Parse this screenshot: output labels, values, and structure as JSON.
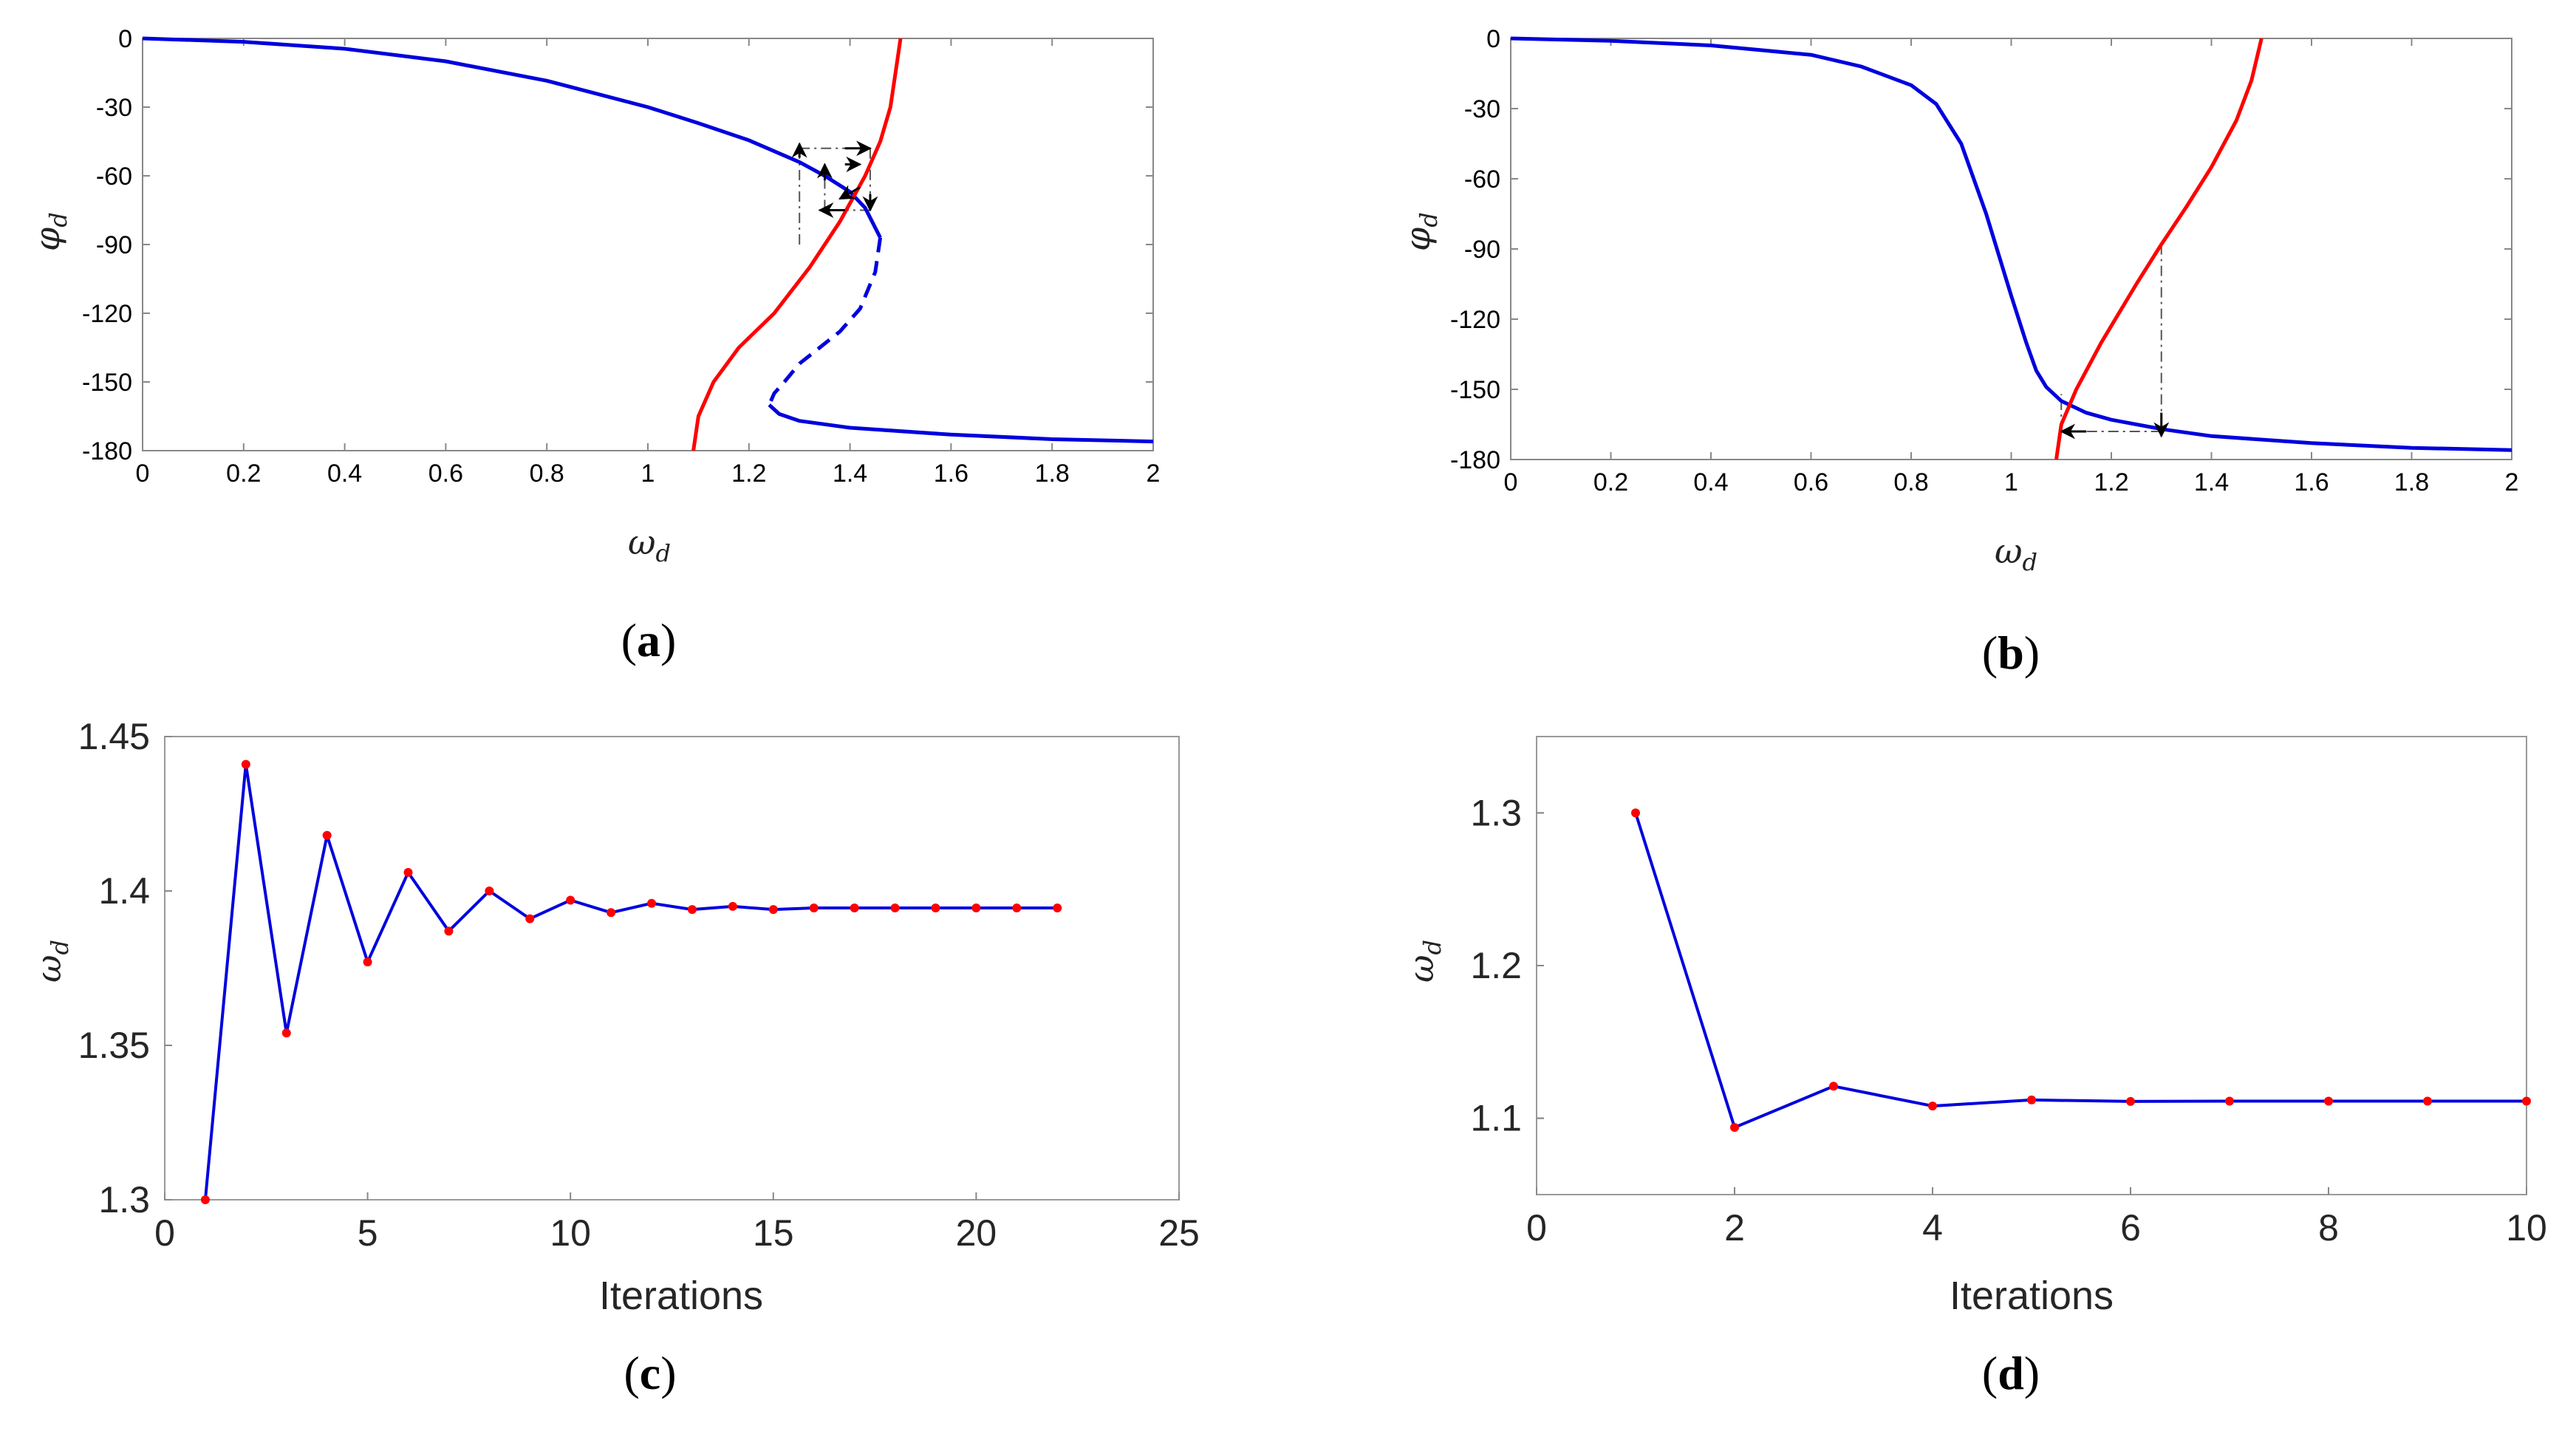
{
  "colors": {
    "red": "#ff0000",
    "blue": "#0000dd",
    "marker": "#ff0000",
    "axis": "#888888",
    "guide": "#555555"
  },
  "chart_data": [
    {
      "id": "a",
      "type": "line",
      "panel_label": "a",
      "xlabel_symbol": "ω",
      "xlabel_sub": "d",
      "ylabel_symbol": "φ",
      "ylabel_sub": "d",
      "xlim": [
        0,
        2
      ],
      "ylim": [
        -180,
        0
      ],
      "xticks": [
        "0",
        "0.2",
        "0.4",
        "0.6",
        "0.8",
        "1",
        "1.2",
        "1.4",
        "1.6",
        "1.8",
        "2"
      ],
      "yticks": [
        "0",
        "-30",
        "-60",
        "-90",
        "-120",
        "-150",
        "-180"
      ],
      "series": [
        {
          "name": "phase-upper-stable",
          "color": "blue",
          "style": "solid",
          "x": [
            0,
            0.2,
            0.4,
            0.6,
            0.8,
            1.0,
            1.1,
            1.2,
            1.3,
            1.35,
            1.4,
            1.43,
            1.46
          ],
          "y": [
            0,
            -1.5,
            -4.5,
            -10,
            -18.5,
            -30,
            -37,
            -44.5,
            -54,
            -60,
            -67,
            -74,
            -87
          ]
        },
        {
          "name": "phase-middle-unstable",
          "color": "blue",
          "style": "dashed",
          "x": [
            1.46,
            1.45,
            1.42,
            1.38,
            1.34,
            1.3,
            1.27,
            1.25,
            1.24
          ],
          "y": [
            -87,
            -102,
            -118,
            -128,
            -135,
            -142,
            -150,
            -155,
            -160
          ]
        },
        {
          "name": "phase-lower-stable",
          "color": "blue",
          "style": "solid",
          "x": [
            1.24,
            1.26,
            1.3,
            1.4,
            1.6,
            1.8,
            2.0
          ],
          "y": [
            -160,
            -164,
            -167,
            -170,
            -173,
            -175,
            -176
          ]
        },
        {
          "name": "control-phase",
          "color": "red",
          "style": "solid",
          "x": [
            1.09,
            1.1,
            1.13,
            1.18,
            1.25,
            1.32,
            1.38,
            1.43,
            1.46,
            1.48,
            1.49,
            1.5
          ],
          "y": [
            -180,
            -165,
            -150,
            -135,
            -120,
            -100,
            -80,
            -60,
            -45,
            -30,
            -15,
            0
          ]
        }
      ],
      "annotations": [
        {
          "type": "guide",
          "from": [
            1.3,
            -90
          ],
          "to": [
            1.3,
            -48
          ]
        },
        {
          "type": "arrow",
          "from": [
            1.3,
            -52
          ],
          "to": [
            1.3,
            -46
          ]
        },
        {
          "type": "guide",
          "from": [
            1.3,
            -48
          ],
          "to": [
            1.43,
            -48
          ]
        },
        {
          "type": "arrow",
          "from": [
            1.39,
            -48
          ],
          "to": [
            1.44,
            -48
          ]
        },
        {
          "type": "guide",
          "from": [
            1.44,
            -48
          ],
          "to": [
            1.44,
            -75
          ]
        },
        {
          "type": "arrow",
          "from": [
            1.44,
            -68
          ],
          "to": [
            1.44,
            -75
          ]
        },
        {
          "type": "guide",
          "from": [
            1.44,
            -75
          ],
          "to": [
            1.35,
            -75
          ]
        },
        {
          "type": "arrow",
          "from": [
            1.39,
            -75
          ],
          "to": [
            1.34,
            -75
          ]
        },
        {
          "type": "guide",
          "from": [
            1.35,
            -75
          ],
          "to": [
            1.35,
            -55
          ]
        },
        {
          "type": "arrow",
          "from": [
            1.35,
            -62
          ],
          "to": [
            1.35,
            -55
          ]
        },
        {
          "type": "arrow",
          "from": [
            1.39,
            -55
          ],
          "to": [
            1.42,
            -55
          ]
        },
        {
          "type": "arrow",
          "from": [
            1.42,
            -65
          ],
          "to": [
            1.38,
            -70
          ]
        }
      ]
    },
    {
      "id": "b",
      "type": "line",
      "panel_label": "b",
      "xlabel_symbol": "ω",
      "xlabel_sub": "d",
      "ylabel_symbol": "φ",
      "ylabel_sub": "d",
      "xlim": [
        0,
        2
      ],
      "ylim": [
        -180,
        0
      ],
      "xticks": [
        "0",
        "0.2",
        "0.4",
        "0.6",
        "0.8",
        "1",
        "1.2",
        "1.4",
        "1.6",
        "1.8",
        "2"
      ],
      "yticks": [
        "0",
        "-30",
        "-60",
        "-90",
        "-120",
        "-150",
        "-180"
      ],
      "series": [
        {
          "name": "phase-response",
          "color": "blue",
          "style": "solid",
          "x": [
            0,
            0.2,
            0.4,
            0.6,
            0.7,
            0.8,
            0.85,
            0.9,
            0.95,
            1.0,
            1.03,
            1.05,
            1.07,
            1.1,
            1.15,
            1.2,
            1.3,
            1.4,
            1.6,
            1.8,
            2.0
          ],
          "y": [
            0,
            -1,
            -3,
            -7,
            -12,
            -20,
            -28,
            -45,
            -75,
            -110,
            -130,
            -142,
            -149,
            -155,
            -160,
            -163,
            -167,
            -170,
            -173,
            -175,
            -176
          ]
        },
        {
          "name": "control-phase",
          "color": "red",
          "style": "solid",
          "x": [
            1.09,
            1.1,
            1.13,
            1.18,
            1.25,
            1.3,
            1.35,
            1.4,
            1.45,
            1.48,
            1.5
          ],
          "y": [
            -180,
            -165,
            -150,
            -130,
            -105,
            -88,
            -72,
            -55,
            -35,
            -18,
            0
          ]
        }
      ],
      "annotations": [
        {
          "type": "guide",
          "from": [
            1.3,
            -88
          ],
          "to": [
            1.3,
            -168
          ]
        },
        {
          "type": "arrow",
          "from": [
            1.3,
            -160
          ],
          "to": [
            1.3,
            -170
          ]
        },
        {
          "type": "guide",
          "from": [
            1.3,
            -168
          ],
          "to": [
            1.11,
            -168
          ]
        },
        {
          "type": "arrow",
          "from": [
            1.15,
            -168
          ],
          "to": [
            1.1,
            -168
          ]
        },
        {
          "type": "guide",
          "from": [
            1.1,
            -168
          ],
          "to": [
            1.1,
            -152
          ]
        }
      ]
    },
    {
      "id": "c",
      "type": "line",
      "panel_label": "c",
      "xlabel": "Iterations",
      "ylabel_symbol": "ω",
      "ylabel_sub": "d",
      "xlim": [
        0,
        25
      ],
      "ylim": [
        1.3,
        1.45
      ],
      "xticks": [
        "0",
        "5",
        "10",
        "15",
        "20",
        "25"
      ],
      "yticks": [
        "1.3",
        "1.35",
        "1.4",
        "1.45"
      ],
      "series": [
        {
          "name": "omega-iterations",
          "color": "blue",
          "markers": true,
          "x": [
            1,
            2,
            3,
            4,
            5,
            6,
            7,
            8,
            9,
            10,
            11,
            12,
            13,
            14,
            15,
            16,
            17,
            18,
            19,
            20,
            21,
            22
          ],
          "y": [
            1.3,
            1.441,
            1.354,
            1.418,
            1.377,
            1.406,
            1.387,
            1.4,
            1.391,
            1.397,
            1.393,
            1.396,
            1.394,
            1.395,
            1.394,
            1.3945,
            1.3945,
            1.3945,
            1.3945,
            1.3945,
            1.3945,
            1.3945
          ]
        }
      ]
    },
    {
      "id": "d",
      "type": "line",
      "panel_label": "d",
      "xlabel": "Iterations",
      "ylabel_symbol": "ω",
      "ylabel_sub": "d",
      "xlim": [
        0,
        10
      ],
      "ylim": [
        1.05,
        1.35
      ],
      "xticks": [
        "0",
        "2",
        "4",
        "6",
        "8",
        "10"
      ],
      "yticks": [
        "1.1",
        "1.2",
        "1.3"
      ],
      "series": [
        {
          "name": "omega-iterations",
          "color": "blue",
          "markers": true,
          "x": [
            1,
            2,
            3,
            4,
            5,
            6,
            7,
            8,
            9,
            10
          ],
          "y": [
            1.3,
            1.094,
            1.121,
            1.108,
            1.112,
            1.111,
            1.1112,
            1.1112,
            1.1112,
            1.1112
          ]
        }
      ]
    }
  ]
}
